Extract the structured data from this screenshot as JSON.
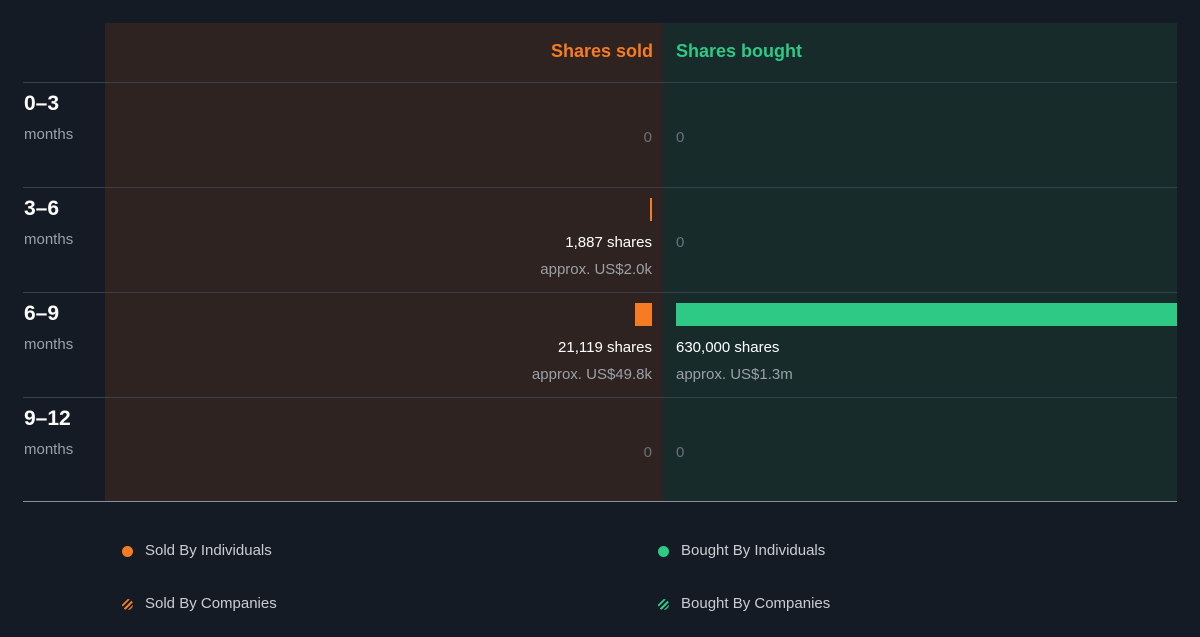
{
  "colors": {
    "sold": "#f57c22",
    "bought": "#2ec984",
    "background": "#151b24",
    "sold_panel": "#2e2321",
    "bought_panel": "#182b2b"
  },
  "chart_data": {
    "type": "bar",
    "orientation": "horizontal-diverging",
    "headers": {
      "sold": "Shares sold",
      "bought": "Shares bought"
    },
    "periods": [
      {
        "num": "0–3",
        "unit": "months",
        "sold": 0,
        "bought": 0,
        "sold_text": "0",
        "bought_text": "0",
        "sold_approx": "",
        "bought_approx": ""
      },
      {
        "num": "3–6",
        "unit": "months",
        "sold": 1887,
        "bought": 0,
        "sold_text": "1,887 shares",
        "bought_text": "0",
        "sold_approx": "approx. US$2.0k",
        "bought_approx": ""
      },
      {
        "num": "6–9",
        "unit": "months",
        "sold": 21119,
        "bought": 630000,
        "sold_text": "21,119 shares",
        "bought_text": "630,000 shares",
        "sold_approx": "approx. US$49.8k",
        "bought_approx": "approx. US$1.3m"
      },
      {
        "num": "9–12",
        "unit": "months",
        "sold": 0,
        "bought": 0,
        "sold_text": "0",
        "bought_text": "0",
        "sold_approx": "",
        "bought_approx": ""
      }
    ],
    "legend": {
      "sold_individuals": "Sold By Individuals",
      "bought_individuals": "Bought By Individuals",
      "sold_companies": "Sold By Companies",
      "bought_companies": "Bought By Companies"
    }
  }
}
